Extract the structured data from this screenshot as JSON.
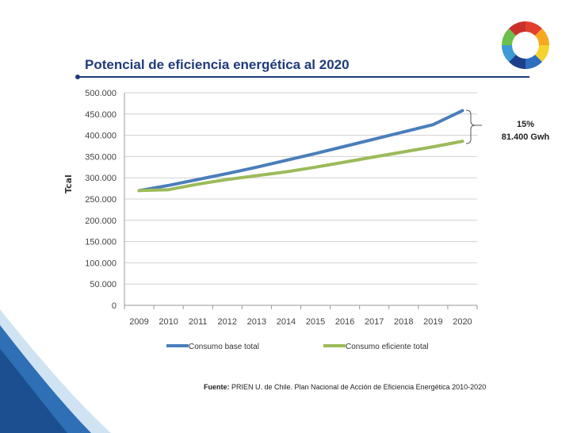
{
  "slide": {
    "title": "Potencial de eficiencia energética al 2020",
    "source_label": "Fuente:",
    "source_text": "PRIEN U. de Chile. Plan Nacional de Acción de Eficiencia Energética 2010-2020"
  },
  "annotation": {
    "percent": "15%",
    "amount": "81.400 Gwh"
  },
  "colors": {
    "base": "#4a7ebb",
    "efficient": "#9bbb59",
    "title": "#1f3b7a"
  },
  "chart_data": {
    "type": "line",
    "title": "Potencial de eficiencia energética al 2020",
    "xlabel": "",
    "ylabel": "Tcal",
    "ylim": [
      0,
      500000
    ],
    "yticks": [
      0,
      50000,
      100000,
      150000,
      200000,
      250000,
      300000,
      350000,
      400000,
      450000,
      500000
    ],
    "ytick_labels": [
      "0",
      "50.000",
      "100.000",
      "150.000",
      "200.000",
      "250.000",
      "300.000",
      "350.000",
      "400.000",
      "450.000",
      "500.000"
    ],
    "categories": [
      "2009",
      "2010",
      "2011",
      "2012",
      "2013",
      "2014",
      "2015",
      "2016",
      "2017",
      "2018",
      "2019",
      "2020"
    ],
    "grid": true,
    "legend_position": "bottom",
    "series": [
      {
        "name": "Consumo base total",
        "color": "#4a7ebb",
        "values": [
          270000,
          282000,
          296000,
          310000,
          325000,
          341000,
          357000,
          374000,
          391000,
          408000,
          425000,
          458000
        ]
      },
      {
        "name": "Consumo eficiente total",
        "color": "#9bbb59",
        "values": [
          270000,
          272000,
          285000,
          296000,
          305000,
          314000,
          325000,
          337000,
          349000,
          361000,
          373000,
          386000
        ]
      }
    ]
  }
}
